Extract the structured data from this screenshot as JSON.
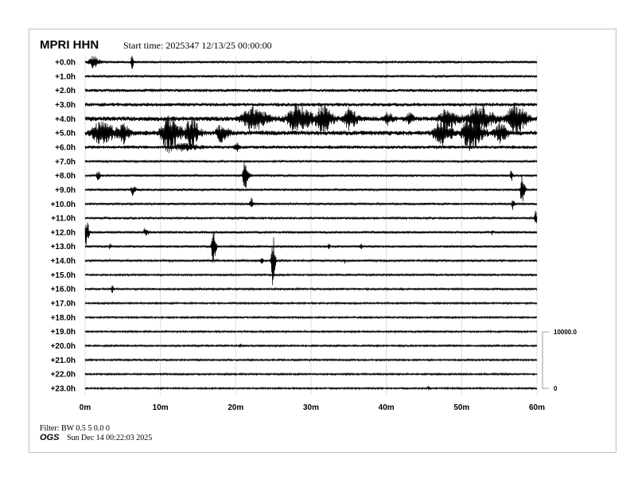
{
  "header": {
    "station": "MPRI HHN",
    "start_time": "Start time: 2025347 12/13/25 00:00:00"
  },
  "footer": {
    "filter": "Filter: BW 0.5 5 0.0 0",
    "logo": "OGS",
    "generated": "Sun Dec 14 00:22:03 2025"
  },
  "chart_data": {
    "type": "line",
    "title": "MPRI HHN",
    "row_labels": [
      "+0.0h",
      "+1.0h",
      "+2.0h",
      "+3.0h",
      "+4.0h",
      "+5.0h",
      "+6.0h",
      "+7.0h",
      "+8.0h",
      "+9.0h",
      "+10.0h",
      "+11.0h",
      "+12.0h",
      "+13.0h",
      "+14.0h",
      "+15.0h",
      "+16.0h",
      "+17.0h",
      "+18.0h",
      "+19.0h",
      "+20.0h",
      "+21.0h",
      "+22.0h",
      "+23.0h"
    ],
    "x_ticks": [
      "0m",
      "10m",
      "20m",
      "30m",
      "40m",
      "50m",
      "60m"
    ],
    "xlim": [
      0,
      60
    ],
    "grid": true,
    "scale_bar": {
      "top_label": "10000.0",
      "bottom_label": "0",
      "max": 10000
    },
    "trace_color": "#000000",
    "grid_color": "#dddddd",
    "noise_counts": [
      220,
      200,
      280,
      320,
      420,
      420,
      300,
      180,
      200,
      200,
      200,
      180,
      220,
      200,
      180,
      170,
      170,
      160,
      160,
      160,
      160,
      160,
      160,
      150
    ],
    "events": [
      {
        "hour": 0,
        "minute": 1,
        "duration": 1.5,
        "amplitude": 1000
      },
      {
        "hour": 0,
        "minute": 6.2,
        "duration": 0.4,
        "amplitude": 1100
      },
      {
        "hour": 4,
        "minute": 22,
        "duration": 4,
        "amplitude": 2000
      },
      {
        "hour": 4,
        "minute": 28,
        "duration": 4,
        "amplitude": 2400
      },
      {
        "hour": 4,
        "minute": 31.5,
        "duration": 2.5,
        "amplitude": 2300
      },
      {
        "hour": 4,
        "minute": 35,
        "duration": 2,
        "amplitude": 1800
      },
      {
        "hour": 4,
        "minute": 40,
        "duration": 1.5,
        "amplitude": 900
      },
      {
        "hour": 4,
        "minute": 43,
        "duration": 1,
        "amplitude": 900
      },
      {
        "hour": 4,
        "minute": 48,
        "duration": 3,
        "amplitude": 1600
      },
      {
        "hour": 4,
        "minute": 52,
        "duration": 4,
        "amplitude": 2400
      },
      {
        "hour": 4,
        "minute": 57,
        "duration": 3,
        "amplitude": 2600
      },
      {
        "hour": 5,
        "minute": 2,
        "duration": 4,
        "amplitude": 1700
      },
      {
        "hour": 5,
        "minute": 5,
        "duration": 1.5,
        "amplitude": 1500
      },
      {
        "hour": 5,
        "minute": 11,
        "duration": 3,
        "amplitude": 3200
      },
      {
        "hour": 5,
        "minute": 14,
        "duration": 2,
        "amplitude": 2600
      },
      {
        "hour": 5,
        "minute": 18,
        "duration": 2,
        "amplitude": 1300
      },
      {
        "hour": 5,
        "minute": 47,
        "duration": 3,
        "amplitude": 2200
      },
      {
        "hour": 5,
        "minute": 51,
        "duration": 3,
        "amplitude": 3000
      },
      {
        "hour": 5,
        "minute": 55,
        "duration": 2,
        "amplitude": 1600
      },
      {
        "hour": 6,
        "minute": 20,
        "duration": 0.6,
        "amplitude": 900
      },
      {
        "hour": 6,
        "minute": 13,
        "duration": 4,
        "amplitude": 500
      },
      {
        "hour": 8,
        "minute": 1.7,
        "duration": 0.5,
        "amplitude": 800
      },
      {
        "hour": 8,
        "minute": 21.2,
        "duration": 0.8,
        "amplitude": 2500
      },
      {
        "hour": 8,
        "minute": 56.6,
        "duration": 0.4,
        "amplitude": 900
      },
      {
        "hour": 9,
        "minute": 6.3,
        "duration": 0.6,
        "amplitude": 900
      },
      {
        "hour": 9,
        "minute": 58,
        "duration": 0.6,
        "amplitude": 2800
      },
      {
        "hour": 10,
        "minute": 22,
        "duration": 0.5,
        "amplitude": 1000
      },
      {
        "hour": 10,
        "minute": 56.8,
        "duration": 0.4,
        "amplitude": 1100
      },
      {
        "hour": 11,
        "minute": 59.8,
        "duration": 0.3,
        "amplitude": 1500
      },
      {
        "hour": 12,
        "minute": 0.1,
        "duration": 0.6,
        "amplitude": 2800
      },
      {
        "hour": 12,
        "minute": 8,
        "duration": 0.8,
        "amplitude": 600
      },
      {
        "hour": 12,
        "minute": 54,
        "duration": 0.2,
        "amplitude": 500
      },
      {
        "hour": 13,
        "minute": 3.3,
        "duration": 0.2,
        "amplitude": 600
      },
      {
        "hour": 13,
        "minute": 17,
        "duration": 0.6,
        "amplitude": 3500
      },
      {
        "hour": 13,
        "minute": 32.3,
        "duration": 0.3,
        "amplitude": 600
      },
      {
        "hour": 13,
        "minute": 36.6,
        "duration": 0.2,
        "amplitude": 500
      },
      {
        "hour": 14,
        "minute": 23.4,
        "duration": 0.3,
        "amplitude": 700
      },
      {
        "hour": 14,
        "minute": 24.9,
        "duration": 0.5,
        "amplitude": 5000
      },
      {
        "hour": 14,
        "minute": 34.5,
        "duration": 0.2,
        "amplitude": 400
      },
      {
        "hour": 16,
        "minute": 3.6,
        "duration": 0.4,
        "amplitude": 600
      },
      {
        "hour": 20,
        "minute": 20.6,
        "duration": 0.1,
        "amplitude": 400
      },
      {
        "hour": 23,
        "minute": 45.6,
        "duration": 0.2,
        "amplitude": 500
      }
    ]
  }
}
